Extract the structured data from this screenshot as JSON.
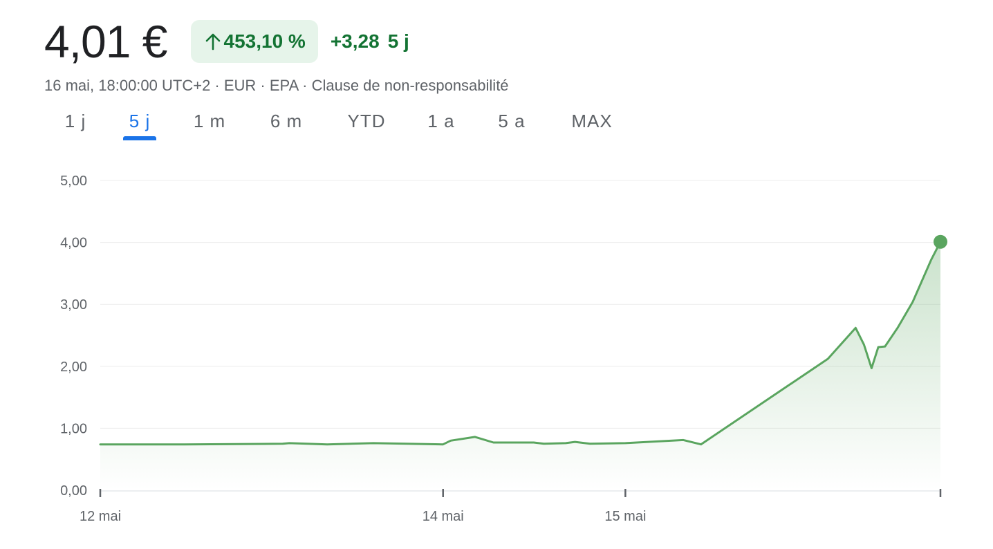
{
  "quote": {
    "price": "4,01 €",
    "change_percent": "453,10 %",
    "change_abs": "+3,28",
    "change_period": "5 j",
    "meta": "16 mai, 18:00:00 UTC+2 · EUR · EPA · Clause de non-responsabilité",
    "colors": {
      "up": "#137333",
      "up_bg": "#e6f4ea",
      "line": "#5aa55f"
    }
  },
  "tabs": [
    {
      "label": "1 j",
      "active": false
    },
    {
      "label": "5 j",
      "active": true
    },
    {
      "label": "1 m",
      "active": false
    },
    {
      "label": "6 m",
      "active": false
    },
    {
      "label": "YTD",
      "active": false
    },
    {
      "label": "1 a",
      "active": false
    },
    {
      "label": "5 a",
      "active": false
    },
    {
      "label": "MAX",
      "active": false
    }
  ],
  "chart_data": {
    "type": "area",
    "ylim": [
      0,
      5
    ],
    "yticks": [
      0,
      1,
      2,
      3,
      4,
      5
    ],
    "ytick_labels": [
      "0,00",
      "1,00",
      "2,00",
      "3,00",
      "4,00",
      "5,00"
    ],
    "xlim": [
      0,
      100
    ],
    "xticks": [
      {
        "x": 0,
        "label": "12 mai"
      },
      {
        "x": 40.8,
        "label": "14 mai"
      },
      {
        "x": 62.5,
        "label": "15 mai"
      },
      {
        "x": 100,
        "label": ""
      }
    ],
    "grid": true,
    "series": [
      {
        "points": [
          [
            0,
            0.74
          ],
          [
            10,
            0.74
          ],
          [
            21.7,
            0.75
          ],
          [
            22.5,
            0.76
          ],
          [
            27,
            0.74
          ],
          [
            32.5,
            0.76
          ],
          [
            40.8,
            0.74
          ],
          [
            41.7,
            0.8
          ],
          [
            44.6,
            0.86
          ],
          [
            46.8,
            0.77
          ],
          [
            51.6,
            0.77
          ],
          [
            52.8,
            0.75
          ],
          [
            55.4,
            0.76
          ],
          [
            56.5,
            0.78
          ],
          [
            58.3,
            0.75
          ],
          [
            62.5,
            0.76
          ],
          [
            69.4,
            0.81
          ],
          [
            71.5,
            0.74
          ],
          [
            86.6,
            2.12
          ],
          [
            89.9,
            2.62
          ],
          [
            90.9,
            2.35
          ],
          [
            91.8,
            1.97
          ],
          [
            92.6,
            2.31
          ],
          [
            93.4,
            2.32
          ],
          [
            94.9,
            2.62
          ],
          [
            96.7,
            3.04
          ],
          [
            98.9,
            3.72
          ],
          [
            100,
            4.01
          ]
        ]
      }
    ]
  }
}
